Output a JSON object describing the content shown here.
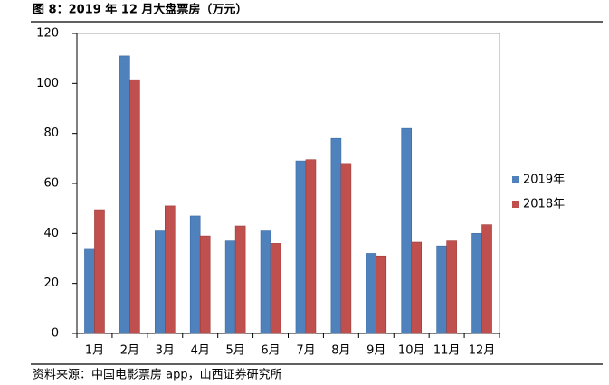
{
  "chart_data": {
    "type": "bar",
    "title": "图 8：2019 年 12 月大盘票房（万元）",
    "source": "资料来源：中国电影票房 app，山西证券研究所",
    "categories": [
      "1月",
      "2月",
      "3月",
      "4月",
      "5月",
      "6月",
      "7月",
      "8月",
      "9月",
      "10月",
      "11月",
      "12月"
    ],
    "series": [
      {
        "name": "2019年",
        "color": "#4f81bd",
        "values": [
          34,
          111,
          41,
          47,
          37,
          41,
          69,
          78,
          32,
          82,
          35,
          40
        ]
      },
      {
        "name": "2018年",
        "color": "#c0504d",
        "values": [
          49.5,
          101.5,
          51,
          39,
          43,
          36,
          69.5,
          68,
          31,
          36.5,
          37,
          43.5
        ]
      }
    ],
    "ylim": [
      0,
      120
    ],
    "yticks": [
      0,
      20,
      40,
      60,
      80,
      100,
      120
    ],
    "grid": false,
    "legend": "right"
  }
}
